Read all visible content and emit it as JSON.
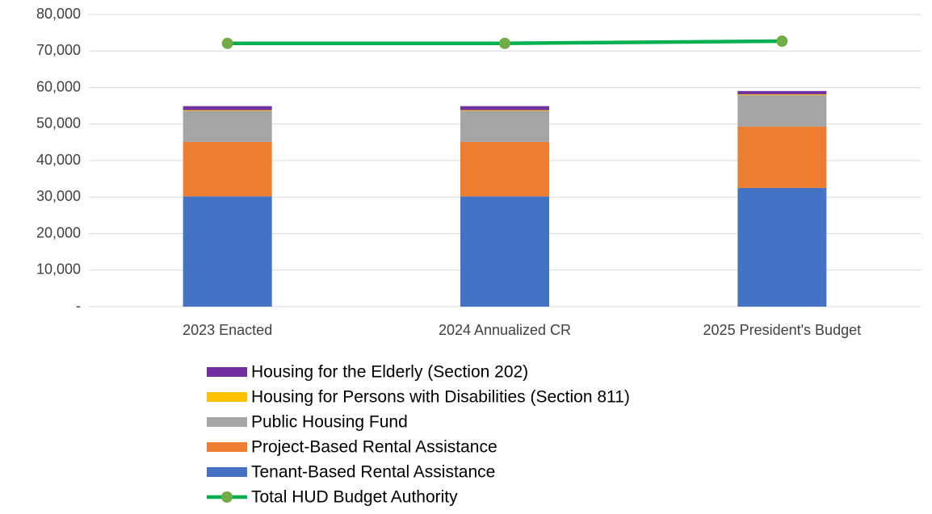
{
  "chart_data": {
    "type": "bar",
    "stacked": true,
    "categories": [
      "2023 Enacted",
      "2024 Annualized CR",
      "2025 President's Budget"
    ],
    "series": [
      {
        "name": "Tenant-Based Rental Assistance",
        "color": "#4472c4",
        "values": [
          30200,
          30200,
          32500
        ]
      },
      {
        "name": "Project-Based Rental Assistance",
        "color": "#ed7d31",
        "values": [
          14900,
          14900,
          16800
        ]
      },
      {
        "name": "Public Housing Fund",
        "color": "#a5a5a5",
        "values": [
          8500,
          8500,
          8600
        ]
      },
      {
        "name": "Housing for Persons with Disabilities (Section 811)",
        "color": "#ffc000",
        "values": [
          230,
          230,
          250
        ]
      },
      {
        "name": "Housing for the Elderly (Section 202)",
        "color": "#7030a0",
        "values": [
          1075,
          1075,
          900
        ]
      },
      {
        "name": "Total HUD Budget Authority",
        "type": "line",
        "color": "#00b050",
        "marker_color": "#70ad47",
        "values": [
          72100,
          72100,
          72700
        ]
      }
    ],
    "ylim": [
      0,
      80000
    ],
    "yticks": [
      {
        "value": 0,
        "label": "-"
      },
      {
        "value": 10000,
        "label": "10,000"
      },
      {
        "value": 20000,
        "label": "20,000"
      },
      {
        "value": 30000,
        "label": "30,000"
      },
      {
        "value": 40000,
        "label": "40,000"
      },
      {
        "value": 50000,
        "label": "50,000"
      },
      {
        "value": 60000,
        "label": "60,000"
      },
      {
        "value": 70000,
        "label": "70,000"
      },
      {
        "value": 80000,
        "label": "80,000"
      }
    ],
    "grid": true,
    "legend": "bottom"
  }
}
